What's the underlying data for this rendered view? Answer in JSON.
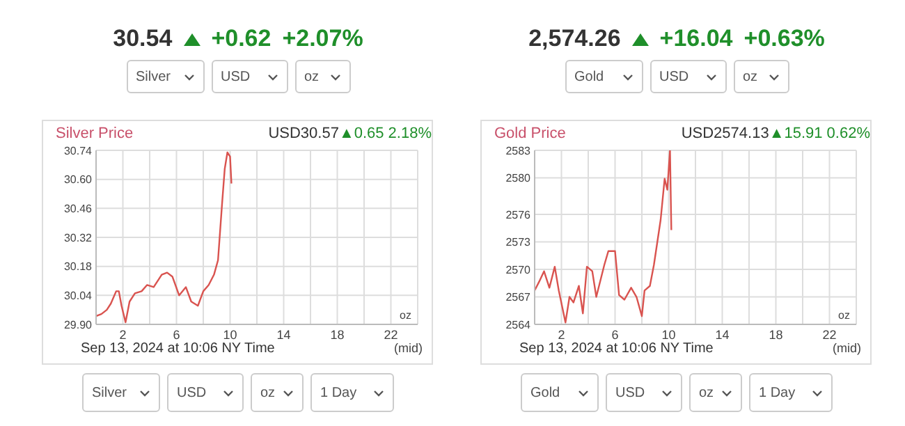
{
  "chart_data": [
    {
      "type": "line",
      "title": "Silver Price",
      "annotations": [
        "30.54",
        "+0.62",
        "+2.07%",
        "Silver",
        "USD",
        "oz",
        "USD30.57",
        "▲0.65 2.18%",
        "oz",
        "Sep 13, 2024 at 10:06 NY Time",
        "(mid)",
        "Silver",
        "USD",
        "oz",
        "1 Day"
      ],
      "x": [
        0,
        0.4,
        0.8,
        1.1,
        1.5,
        1.7,
        1.9,
        2.2,
        2.5,
        2.9,
        3.4,
        3.8,
        4.3,
        4.9,
        5.3,
        5.7,
        6.2,
        6.7,
        7.1,
        7.6,
        8.0,
        8.4,
        8.8,
        9.1,
        9.4,
        9.6,
        9.8,
        10.0,
        10.1
      ],
      "series": [
        {
          "color": "#d9534f",
          "values": [
            29.94,
            29.95,
            29.97,
            30.0,
            30.06,
            30.06,
            29.99,
            29.91,
            30.01,
            30.05,
            30.06,
            30.09,
            30.08,
            30.14,
            30.15,
            30.13,
            30.04,
            30.08,
            30.01,
            29.99,
            30.06,
            30.09,
            30.14,
            30.21,
            30.48,
            30.65,
            30.73,
            30.71,
            30.58
          ]
        }
      ],
      "xlim": [
        0,
        24
      ],
      "xticks": [
        {
          "value": 0,
          "label": null
        },
        2,
        {
          "value": 4,
          "label": null
        },
        6,
        {
          "value": 8,
          "label": null
        },
        10,
        {
          "value": 12,
          "label": null
        },
        14,
        {
          "value": 16,
          "label": null
        },
        18,
        {
          "value": 20,
          "label": null
        },
        22,
        {
          "value": 24,
          "label": null
        }
      ],
      "ylim": [
        29.9,
        30.74
      ],
      "yticks": [
        {
          "value": 29.9,
          "label": "29.90"
        },
        {
          "value": 30.04,
          "label": "30.04"
        },
        {
          "value": 30.18,
          "label": "30.18"
        },
        {
          "value": 30.32,
          "label": "30.32"
        },
        {
          "value": 30.46,
          "label": "30.46"
        },
        {
          "value": 30.6,
          "label": "30.60"
        },
        {
          "value": 30.74,
          "label": "30.74"
        }
      ],
      "grid": true,
      "legend": false,
      "marker": "none",
      "line_style": "solid"
    },
    {
      "type": "line",
      "title": "Gold Price",
      "annotations": [
        "2,574.26",
        "+16.04",
        "+0.63%",
        "Gold",
        "USD",
        "oz",
        "USD2574.13",
        "▲15.91 0.62%",
        "oz",
        "Sep 13, 2024 at 10:06 NY Time",
        "(mid)",
        "Gold",
        "USD",
        "oz",
        "1 Day"
      ],
      "x": [
        0,
        0.35,
        0.7,
        1.1,
        1.5,
        1.8,
        2.3,
        2.6,
        2.9,
        3.3,
        3.6,
        3.9,
        4.3,
        4.6,
        5.2,
        5.5,
        6.0,
        6.3,
        6.7,
        7.2,
        7.6,
        8.0,
        8.2,
        8.6,
        8.9,
        9.4,
        9.7,
        9.9,
        10.1,
        10.2
      ],
      "series": [
        {
          "color": "#d9534f",
          "values": [
            2567.7,
            2568.7,
            2569.8,
            2568.0,
            2570.3,
            2567.7,
            2564.2,
            2567.0,
            2566.4,
            2568.2,
            2565.2,
            2570.3,
            2569.8,
            2567.0,
            2570.5,
            2572.0,
            2572.0,
            2567.2,
            2566.7,
            2568.0,
            2567.0,
            2564.9,
            2567.7,
            2568.2,
            2570.5,
            2575.4,
            2579.9,
            2578.7,
            2583.0,
            2574.3
          ]
        }
      ],
      "xlim": [
        0,
        24
      ],
      "xticks": [
        {
          "value": 0,
          "label": null
        },
        2,
        {
          "value": 4,
          "label": null
        },
        6,
        {
          "value": 8,
          "label": null
        },
        10,
        {
          "value": 12,
          "label": null
        },
        14,
        {
          "value": 16,
          "label": null
        },
        18,
        {
          "value": 20,
          "label": null
        },
        22,
        {
          "value": 24,
          "label": null
        }
      ],
      "ylim": [
        2564,
        2583
      ],
      "yticks": [
        2564,
        2567,
        2570,
        2573,
        2576,
        2580,
        2583
      ],
      "grid": true,
      "legend": false,
      "marker": "none",
      "line_style": "solid"
    }
  ]
}
